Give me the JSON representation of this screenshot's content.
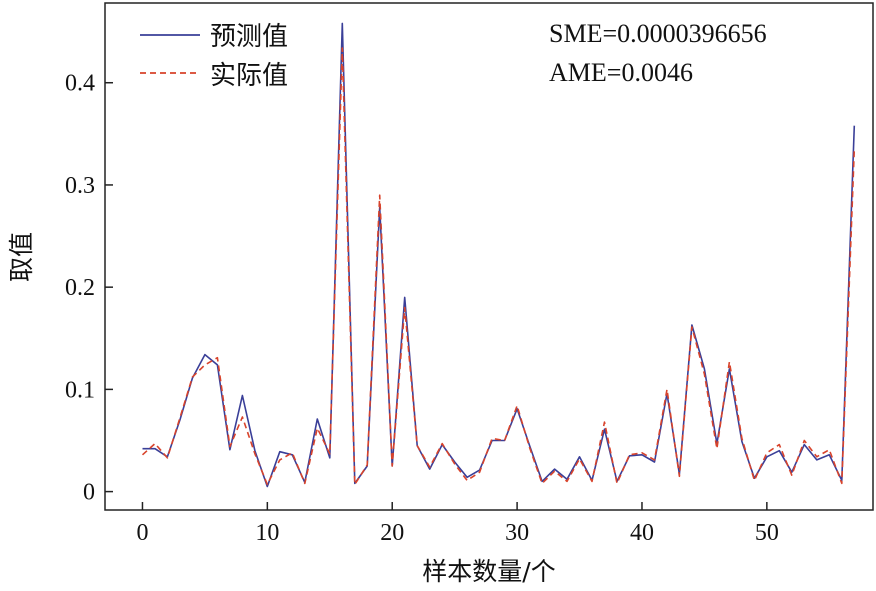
{
  "chart_data": {
    "type": "line",
    "xlabel": "样本数量/个",
    "ylabel": "取值",
    "xlim": [
      -3,
      58.5
    ],
    "ylim": [
      -0.018,
      0.478
    ],
    "x_ticks": [
      0,
      10,
      20,
      30,
      40,
      50
    ],
    "y_ticks": [
      0,
      0.1,
      0.2,
      0.3,
      0.4
    ],
    "x_tick_labels": [
      "0",
      "10",
      "20",
      "30",
      "40",
      "50"
    ],
    "y_tick_labels": [
      "0",
      "0.1",
      "0.2",
      "0.3",
      "0.4"
    ],
    "grid": false,
    "legend_position": "top-left",
    "annotations": [
      "SME=0.0000396656",
      "AME=0.0046"
    ],
    "x": [
      0,
      1,
      2,
      3,
      4,
      5,
      6,
      7,
      8,
      9,
      10,
      11,
      12,
      13,
      14,
      15,
      16,
      17,
      18,
      19,
      20,
      21,
      22,
      23,
      24,
      25,
      26,
      27,
      28,
      29,
      30,
      31,
      32,
      33,
      34,
      35,
      36,
      37,
      38,
      39,
      40,
      41,
      42,
      43,
      44,
      45,
      46,
      47,
      48,
      49,
      50,
      51,
      52,
      53,
      54,
      55,
      56,
      57
    ],
    "series": [
      {
        "name": "预测值",
        "color": "#3a3f98",
        "dash": "solid",
        "values": [
          0.042,
          0.042,
          0.034,
          0.07,
          0.111,
          0.134,
          0.124,
          0.041,
          0.094,
          0.04,
          0.005,
          0.039,
          0.036,
          0.009,
          0.071,
          0.033,
          0.458,
          0.008,
          0.025,
          0.278,
          0.025,
          0.19,
          0.045,
          0.022,
          0.046,
          0.029,
          0.014,
          0.021,
          0.05,
          0.05,
          0.081,
          0.045,
          0.01,
          0.022,
          0.012,
          0.034,
          0.011,
          0.061,
          0.01,
          0.035,
          0.036,
          0.029,
          0.096,
          0.017,
          0.163,
          0.12,
          0.047,
          0.12,
          0.049,
          0.013,
          0.034,
          0.04,
          0.019,
          0.046,
          0.031,
          0.036,
          0.011,
          0.358
        ]
      },
      {
        "name": "实际值",
        "color": "#d8432b",
        "dash": "dashed",
        "values": [
          0.036,
          0.047,
          0.033,
          0.072,
          0.112,
          0.124,
          0.131,
          0.044,
          0.073,
          0.037,
          0.007,
          0.031,
          0.038,
          0.008,
          0.062,
          0.037,
          0.434,
          0.007,
          0.026,
          0.29,
          0.025,
          0.18,
          0.045,
          0.024,
          0.047,
          0.027,
          0.011,
          0.019,
          0.052,
          0.05,
          0.084,
          0.043,
          0.008,
          0.02,
          0.01,
          0.032,
          0.01,
          0.068,
          0.008,
          0.036,
          0.038,
          0.031,
          0.1,
          0.015,
          0.161,
          0.115,
          0.042,
          0.127,
          0.052,
          0.011,
          0.038,
          0.046,
          0.016,
          0.05,
          0.034,
          0.041,
          0.008,
          0.335
        ]
      }
    ]
  }
}
